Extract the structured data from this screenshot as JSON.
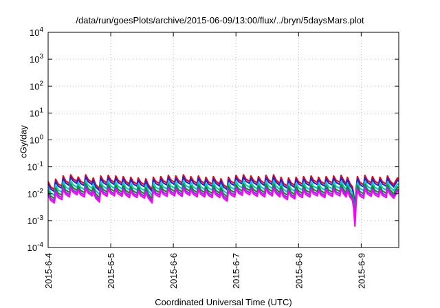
{
  "chart_data": {
    "type": "line",
    "title": "/data/run/goesPlots/archive/2015-06-09/13:00/flux/../bryn/5daysMars.plot",
    "xlabel": "Coordinated Universal Time (UTC)",
    "ylabel": "cGy/day",
    "yscale": "log",
    "ylim": [
      0.0001,
      10000
    ],
    "xlim": [
      0,
      5.6
    ],
    "y_ticks": [
      {
        "mant": "10",
        "exp": "-4",
        "value": 0.0001
      },
      {
        "mant": "10",
        "exp": "-3",
        "value": 0.001
      },
      {
        "mant": "10",
        "exp": "-2",
        "value": 0.01
      },
      {
        "mant": "10",
        "exp": "-1",
        "value": 0.1
      },
      {
        "mant": "10",
        "exp": "0",
        "value": 1
      },
      {
        "mant": "10",
        "exp": "1",
        "value": 10
      },
      {
        "mant": "10",
        "exp": "2",
        "value": 100
      },
      {
        "mant": "10",
        "exp": "3",
        "value": 1000
      },
      {
        "mant": "10",
        "exp": "4",
        "value": 10000
      }
    ],
    "x_ticks": [
      "2015-6-4",
      "2015-6-5",
      "2015-6-6",
      "2015-6-7",
      "2015-6-8",
      "2015-6-9"
    ],
    "grid": true,
    "series": [
      {
        "color": "#ff0000",
        "factor": 1.2
      },
      {
        "color": "#2222dd",
        "factor": 1.0
      },
      {
        "color": "#00cccc",
        "factor": 0.72
      },
      {
        "color": "#009900",
        "factor": 0.55
      },
      {
        "color": "#8b2be2",
        "factor": 0.45
      },
      {
        "color": "#ff00ff",
        "factor": 0.38
      }
    ],
    "reference_profile": [
      [
        0.0,
        0.024
      ],
      [
        0.04,
        0.015
      ],
      [
        0.1,
        0.012
      ],
      [
        0.12,
        0.029
      ],
      [
        0.16,
        0.019
      ],
      [
        0.22,
        0.016
      ],
      [
        0.24,
        0.038
      ],
      [
        0.28,
        0.025
      ],
      [
        0.34,
        0.02
      ],
      [
        0.36,
        0.042
      ],
      [
        0.4,
        0.03
      ],
      [
        0.46,
        0.024
      ],
      [
        0.48,
        0.035
      ],
      [
        0.52,
        0.024
      ],
      [
        0.58,
        0.02
      ],
      [
        0.6,
        0.042
      ],
      [
        0.64,
        0.028
      ],
      [
        0.7,
        0.022
      ],
      [
        0.72,
        0.032
      ],
      [
        0.76,
        0.018
      ],
      [
        0.82,
        0.013
      ],
      [
        0.84,
        0.038
      ],
      [
        0.88,
        0.026
      ],
      [
        0.94,
        0.021
      ],
      [
        0.96,
        0.04
      ],
      [
        1.0,
        0.027
      ],
      [
        1.06,
        0.022
      ],
      [
        1.08,
        0.038
      ],
      [
        1.12,
        0.026
      ],
      [
        1.18,
        0.021
      ],
      [
        1.2,
        0.036
      ],
      [
        1.24,
        0.024
      ],
      [
        1.3,
        0.019
      ],
      [
        1.32,
        0.034
      ],
      [
        1.36,
        0.023
      ],
      [
        1.42,
        0.019
      ],
      [
        1.44,
        0.032
      ],
      [
        1.48,
        0.022
      ],
      [
        1.54,
        0.018
      ],
      [
        1.56,
        0.03
      ],
      [
        1.6,
        0.018
      ],
      [
        1.66,
        0.012
      ],
      [
        1.68,
        0.034
      ],
      [
        1.72,
        0.024
      ],
      [
        1.78,
        0.02
      ],
      [
        1.8,
        0.036
      ],
      [
        1.84,
        0.025
      ],
      [
        1.9,
        0.021
      ],
      [
        1.92,
        0.04
      ],
      [
        1.96,
        0.027
      ],
      [
        2.02,
        0.022
      ],
      [
        2.04,
        0.038
      ],
      [
        2.08,
        0.026
      ],
      [
        2.14,
        0.021
      ],
      [
        2.16,
        0.042
      ],
      [
        2.2,
        0.028
      ],
      [
        2.26,
        0.023
      ],
      [
        2.28,
        0.036
      ],
      [
        2.32,
        0.025
      ],
      [
        2.38,
        0.02
      ],
      [
        2.4,
        0.038
      ],
      [
        2.44,
        0.025
      ],
      [
        2.5,
        0.02
      ],
      [
        2.52,
        0.034
      ],
      [
        2.56,
        0.023
      ],
      [
        2.62,
        0.019
      ],
      [
        2.64,
        0.036
      ],
      [
        2.68,
        0.024
      ],
      [
        2.74,
        0.019
      ],
      [
        2.76,
        0.03
      ],
      [
        2.8,
        0.018
      ],
      [
        2.86,
        0.014
      ],
      [
        2.88,
        0.034
      ],
      [
        2.92,
        0.024
      ],
      [
        2.98,
        0.02
      ],
      [
        3.0,
        0.04
      ],
      [
        3.04,
        0.028
      ],
      [
        3.1,
        0.023
      ],
      [
        3.12,
        0.042
      ],
      [
        3.16,
        0.029
      ],
      [
        3.22,
        0.024
      ],
      [
        3.24,
        0.038
      ],
      [
        3.28,
        0.026
      ],
      [
        3.34,
        0.021
      ],
      [
        3.36,
        0.036
      ],
      [
        3.4,
        0.025
      ],
      [
        3.46,
        0.02
      ],
      [
        3.48,
        0.04
      ],
      [
        3.52,
        0.027
      ],
      [
        3.58,
        0.022
      ],
      [
        3.6,
        0.042
      ],
      [
        3.64,
        0.027
      ],
      [
        3.7,
        0.02
      ],
      [
        3.72,
        0.034
      ],
      [
        3.76,
        0.02
      ],
      [
        3.82,
        0.016
      ],
      [
        3.84,
        0.032
      ],
      [
        3.88,
        0.021
      ],
      [
        3.94,
        0.017
      ],
      [
        3.96,
        0.034
      ],
      [
        4.0,
        0.023
      ],
      [
        4.06,
        0.019
      ],
      [
        4.08,
        0.036
      ],
      [
        4.12,
        0.024
      ],
      [
        4.18,
        0.02
      ],
      [
        4.2,
        0.038
      ],
      [
        4.24,
        0.026
      ],
      [
        4.3,
        0.022
      ],
      [
        4.32,
        0.034
      ],
      [
        4.36,
        0.023
      ],
      [
        4.42,
        0.019
      ],
      [
        4.44,
        0.036
      ],
      [
        4.48,
        0.025
      ],
      [
        4.54,
        0.021
      ],
      [
        4.56,
        0.038
      ],
      [
        4.6,
        0.026
      ],
      [
        4.66,
        0.022
      ],
      [
        4.68,
        0.04
      ],
      [
        4.72,
        0.026
      ],
      [
        4.76,
        0.02
      ],
      [
        4.78,
        0.034
      ],
      [
        4.82,
        0.02
      ],
      [
        4.86,
        0.015
      ],
      [
        4.88,
        0.008
      ],
      [
        4.9,
        0.003
      ],
      [
        4.92,
        0.013
      ],
      [
        4.94,
        0.036
      ],
      [
        4.98,
        0.022
      ],
      [
        5.04,
        0.018
      ],
      [
        5.06,
        0.04
      ],
      [
        5.1,
        0.026
      ],
      [
        5.16,
        0.021
      ],
      [
        5.18,
        0.036
      ],
      [
        5.22,
        0.024
      ],
      [
        5.28,
        0.02
      ],
      [
        5.3,
        0.034
      ],
      [
        5.34,
        0.023
      ],
      [
        5.4,
        0.019
      ],
      [
        5.42,
        0.038
      ],
      [
        5.46,
        0.025
      ],
      [
        5.52,
        0.018
      ],
      [
        5.54,
        0.022
      ],
      [
        5.58,
        0.032
      ],
      [
        5.6,
        0.03
      ]
    ]
  }
}
